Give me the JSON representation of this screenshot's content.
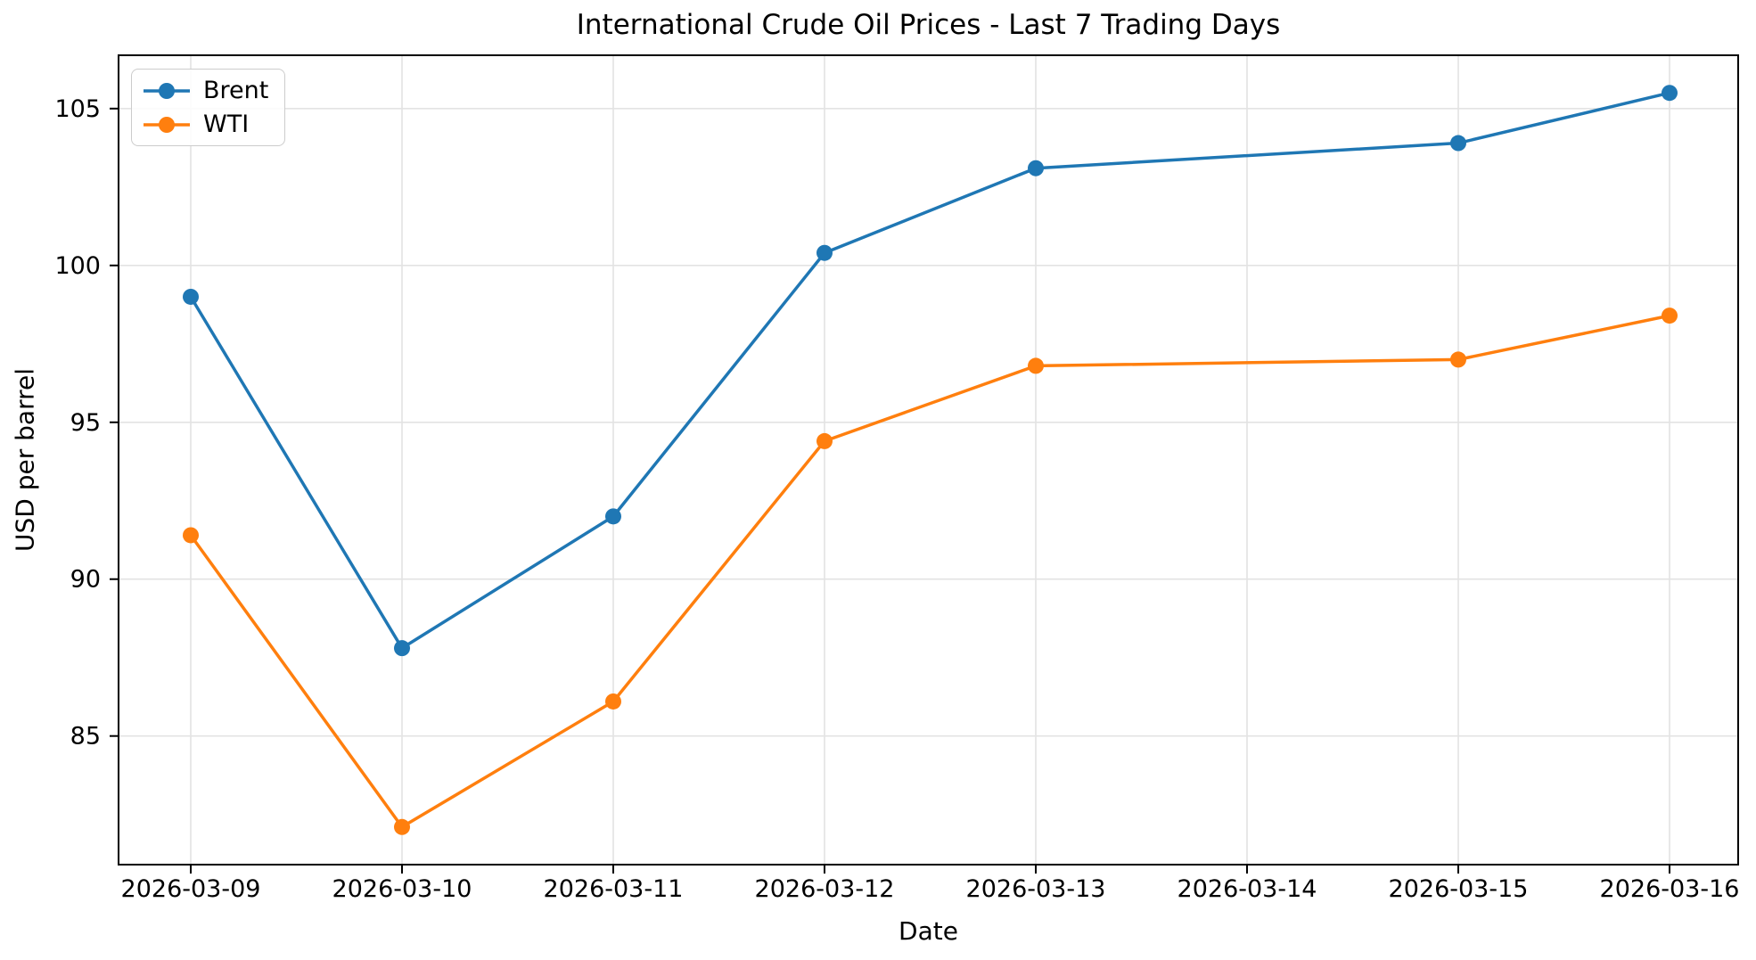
{
  "chart_data": {
    "type": "line",
    "title": "International Crude Oil Prices - Last 7 Trading Days",
    "xlabel": "Date",
    "ylabel": "USD per barrel",
    "x_tick_labels": [
      "2026-03-09",
      "2026-03-10",
      "2026-03-11",
      "2026-03-12",
      "2026-03-13",
      "2026-03-14",
      "2026-03-15",
      "2026-03-16"
    ],
    "y_ticks": [
      85,
      90,
      95,
      100,
      105
    ],
    "ylim": [
      80.9,
      106.7
    ],
    "grid": true,
    "grid_color": "#e3e3e3",
    "axis_color": "#000000",
    "legend_position": "upper-left",
    "marker": "circle",
    "series": [
      {
        "name": "Brent",
        "color": "#1f77b4",
        "x": [
          "2026-03-09",
          "2026-03-10",
          "2026-03-11",
          "2026-03-12",
          "2026-03-13",
          "2026-03-15",
          "2026-03-16"
        ],
        "values": [
          99.0,
          87.8,
          92.0,
          100.4,
          103.1,
          103.9,
          105.5
        ]
      },
      {
        "name": "WTI",
        "color": "#ff7f0e",
        "x": [
          "2026-03-09",
          "2026-03-10",
          "2026-03-11",
          "2026-03-12",
          "2026-03-13",
          "2026-03-15",
          "2026-03-16"
        ],
        "values": [
          91.4,
          82.1,
          86.1,
          94.4,
          96.8,
          97.0,
          98.4
        ]
      }
    ]
  }
}
